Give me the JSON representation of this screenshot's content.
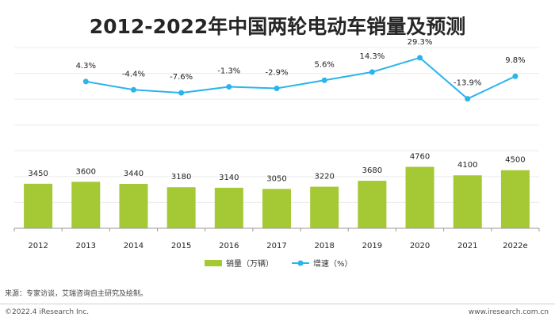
{
  "title": "2012-2022年中国两轮电动车销量及预测",
  "chart_data": {
    "type": "bar",
    "title": "2012-2022年中国两轮电动车销量及预测",
    "categories": [
      "2012",
      "2013",
      "2014",
      "2015",
      "2016",
      "2017",
      "2018",
      "2019",
      "2020",
      "2021",
      "2022e"
    ],
    "series": [
      {
        "name": "销量（万辆）",
        "type": "bar",
        "color": "#a4c934",
        "values": [
          3450,
          3600,
          3440,
          3180,
          3140,
          3050,
          3220,
          3680,
          4760,
          4100,
          4500
        ],
        "labels": [
          "3450",
          "3600",
          "3440",
          "3180",
          "3140",
          "3050",
          "3220",
          "3680",
          "4760",
          "4100",
          "4500"
        ]
      },
      {
        "name": "增速（%）",
        "type": "line",
        "color": "#2ab4ec",
        "values": [
          null,
          4.3,
          -4.4,
          -7.6,
          -1.3,
          -2.9,
          5.6,
          14.3,
          29.3,
          -13.9,
          9.8
        ],
        "labels": [
          "",
          "4.3%",
          "-4.4%",
          "-7.6%",
          "-1.3%",
          "-2.9%",
          "5.6%",
          "14.3%",
          "29.3%",
          "-13.9%",
          "9.8%"
        ]
      }
    ],
    "ylim_bar": [
      0,
      14000
    ],
    "ylim_line": [
      -150,
      40
    ],
    "legend": [
      "销量（万辆）",
      "增速（%）"
    ],
    "legend_position": "bottom-center",
    "grid": true
  },
  "footer": {
    "source": "来源：专家访谈，艾瑞咨询自主研究及绘制。",
    "copyright": "©2022.4 iResearch Inc.",
    "website": "www.iresearch.com.cn"
  }
}
